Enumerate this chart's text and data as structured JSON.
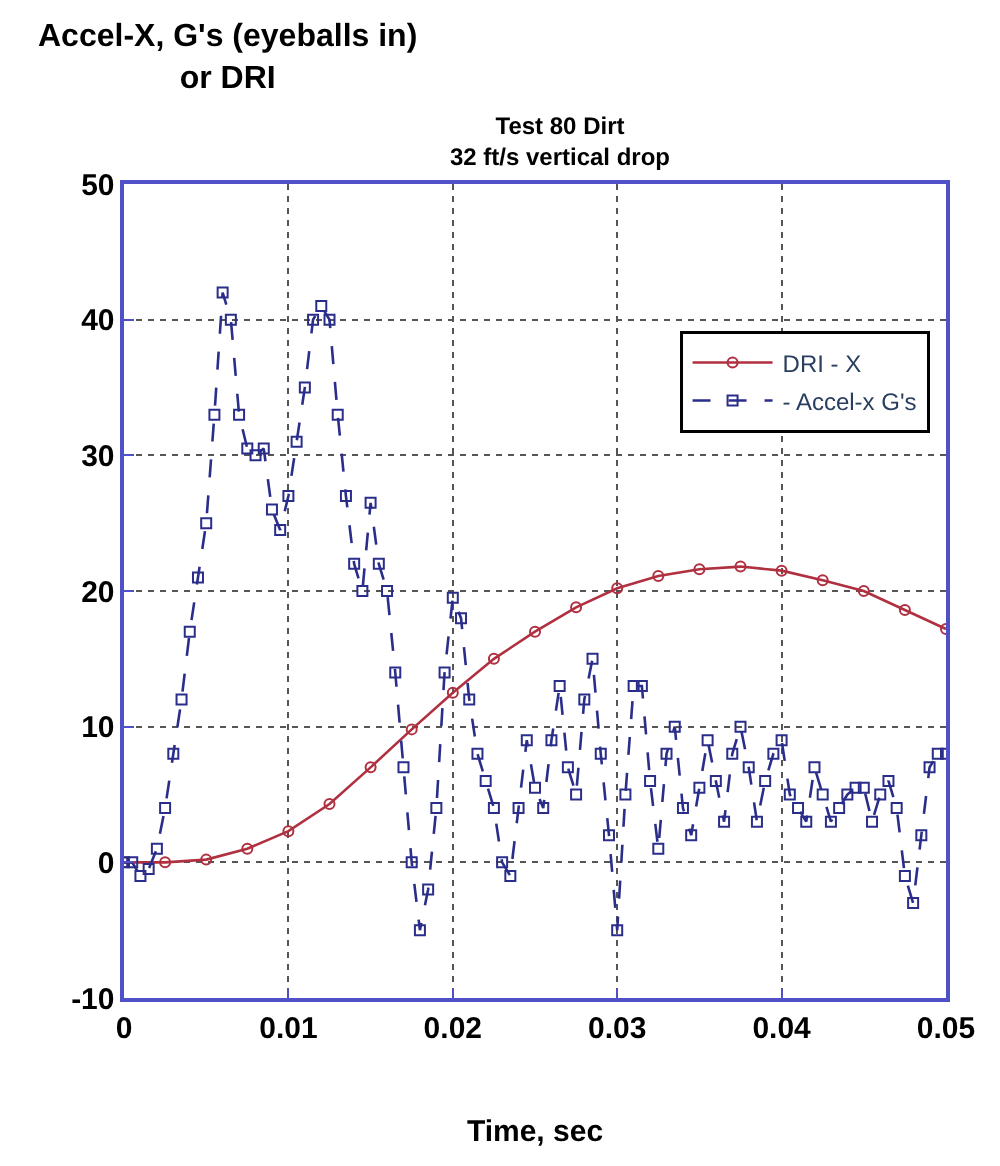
{
  "chart_data": {
    "type": "line",
    "title": "Test 80 Dirt\n32 ft/s vertical drop",
    "ylabel": "Accel-X, G's (eyeballs in)\nor DRI",
    "xlabel": "Time, sec",
    "xlim": [
      0,
      0.05
    ],
    "xticks": [
      0,
      0.01,
      0.02,
      0.03,
      0.04,
      0.05
    ],
    "ylim": [
      -10,
      50
    ],
    "yticks": [
      -10,
      0,
      10,
      20,
      30,
      40,
      50
    ],
    "grid": true,
    "legend": "top right",
    "series": [
      {
        "name": "DRI - X",
        "color": "#b03040",
        "marker": "circle",
        "line_style": "solid",
        "x": [
          0,
          0.0025,
          0.005,
          0.0075,
          0.01,
          0.0125,
          0.015,
          0.0175,
          0.02,
          0.0225,
          0.025,
          0.0275,
          0.03,
          0.0325,
          0.035,
          0.0375,
          0.04,
          0.0425,
          0.045,
          0.0475,
          0.05
        ],
        "values": [
          0,
          0,
          0.2,
          1,
          2.3,
          4.3,
          7,
          9.8,
          12.5,
          15,
          17,
          18.8,
          20.2,
          21.1,
          21.6,
          21.8,
          21.5,
          20.8,
          20,
          18.6,
          17.2
        ]
      },
      {
        "name": "- Accel-x G's",
        "color": "#2a2e8a",
        "marker": "square",
        "line_style": "dashed",
        "x": [
          0,
          0.0005,
          0.001,
          0.0015,
          0.002,
          0.0025,
          0.003,
          0.0035,
          0.004,
          0.0045,
          0.005,
          0.0055,
          0.006,
          0.0065,
          0.007,
          0.0075,
          0.008,
          0.0085,
          0.009,
          0.0095,
          0.01,
          0.0105,
          0.011,
          0.0115,
          0.012,
          0.0125,
          0.013,
          0.0135,
          0.014,
          0.0145,
          0.015,
          0.0155,
          0.016,
          0.0165,
          0.017,
          0.0175,
          0.018,
          0.0185,
          0.019,
          0.0195,
          0.02,
          0.0205,
          0.021,
          0.0215,
          0.022,
          0.0225,
          0.023,
          0.0235,
          0.024,
          0.0245,
          0.025,
          0.0255,
          0.026,
          0.0265,
          0.027,
          0.0275,
          0.028,
          0.0285,
          0.029,
          0.0295,
          0.03,
          0.0305,
          0.031,
          0.0315,
          0.032,
          0.0325,
          0.033,
          0.0335,
          0.034,
          0.0345,
          0.035,
          0.0355,
          0.036,
          0.0365,
          0.037,
          0.0375,
          0.038,
          0.0385,
          0.039,
          0.0395,
          0.04,
          0.0405,
          0.041,
          0.0415,
          0.042,
          0.0425,
          0.043,
          0.0435,
          0.044,
          0.0445,
          0.045,
          0.0455,
          0.046,
          0.0465,
          0.047,
          0.0475,
          0.048,
          0.0485,
          0.049,
          0.0495,
          0.05
        ],
        "values": [
          0,
          0,
          -1,
          -0.5,
          1,
          4,
          8,
          12,
          17,
          21,
          25,
          33,
          42,
          40,
          33,
          30.5,
          30,
          30.5,
          26,
          24.5,
          27,
          31,
          35,
          40,
          41,
          40,
          33,
          27,
          22,
          20,
          26.5,
          22,
          20,
          14,
          7,
          0,
          -5,
          -2,
          4,
          14,
          19.5,
          18,
          12,
          8,
          6,
          4,
          0,
          -1,
          4,
          9,
          5.5,
          4,
          9,
          13,
          7,
          5,
          12,
          15,
          8,
          2,
          -5,
          5,
          13,
          13,
          6,
          1,
          8,
          10,
          4,
          2,
          5.5,
          9,
          6,
          3,
          8,
          10,
          7,
          3,
          6,
          8,
          9,
          5,
          4,
          3,
          7,
          5,
          3,
          4,
          5,
          5.5,
          5.5,
          3,
          5,
          6,
          4,
          -1,
          -3,
          2,
          7,
          8,
          8
        ]
      }
    ]
  }
}
